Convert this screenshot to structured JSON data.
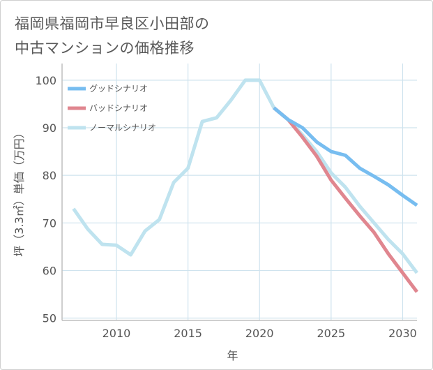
{
  "page": {
    "title_lines": [
      "福岡県福岡市早良区小田部の",
      "中古マンションの価格推移"
    ]
  },
  "chart_data": {
    "type": "line",
    "title": "福岡県福岡市早良区小田部の中古マンションの価格推移",
    "xlabel": "年",
    "ylabel": "坪（3.3㎡）単価（万円）",
    "xlim": [
      2006.2,
      2031.0
    ],
    "ylim": [
      49.5,
      103.5
    ],
    "x_ticks": [
      2010,
      2015,
      2020,
      2025,
      2030
    ],
    "y_ticks": [
      50,
      60,
      70,
      80,
      90,
      100
    ],
    "grid": true,
    "legend_position": "top-left",
    "series": [
      {
        "name": "グッドシナリオ",
        "color": "#77bdf0",
        "x": [
          2021,
          2022,
          2023,
          2024,
          2025,
          2026,
          2027,
          2028,
          2029,
          2030,
          2031
        ],
        "y": [
          94.2,
          91.7,
          90.0,
          87.0,
          85.0,
          84.2,
          81.5,
          79.8,
          78.0,
          75.8,
          73.7
        ]
      },
      {
        "name": "バッドシナリオ",
        "color": "#e0868f",
        "x": [
          2021,
          2022,
          2023,
          2024,
          2025,
          2026,
          2027,
          2028,
          2029,
          2030,
          2031
        ],
        "y": [
          94.2,
          91.7,
          88.0,
          84.0,
          79.0,
          75.2,
          71.5,
          68.0,
          63.5,
          59.5,
          55.5
        ]
      },
      {
        "name": "ノーマルシナリオ",
        "color": "#bfe3ef",
        "x": [
          2007,
          2008,
          2009,
          2010,
          2011,
          2012,
          2013,
          2014,
          2015,
          2016,
          2017,
          2018,
          2019,
          2020,
          2021,
          2022,
          2023,
          2024,
          2025,
          2026,
          2027,
          2028,
          2029,
          2030,
          2031
        ],
        "y": [
          73.0,
          68.7,
          65.5,
          65.3,
          63.3,
          68.3,
          70.7,
          78.5,
          81.5,
          91.3,
          92.1,
          95.8,
          100.0,
          100.0,
          94.2,
          91.7,
          88.5,
          85.0,
          80.5,
          77.5,
          73.5,
          70.0,
          66.5,
          63.5,
          59.5
        ]
      }
    ]
  }
}
